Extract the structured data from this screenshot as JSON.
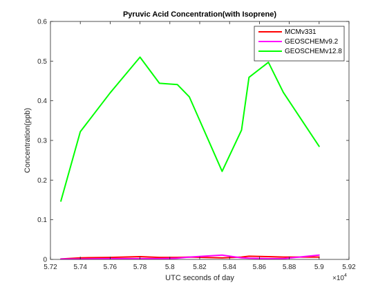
{
  "chart_data": {
    "type": "line",
    "title": "Pyruvic Acid Concentration(with Isoprene)",
    "xlabel": "UTC seconds of day",
    "ylabel": "Concentration(ppb)",
    "x_exponent_label": "×10",
    "x_exponent": "4",
    "xlim": [
      5.72,
      5.92
    ],
    "ylim": [
      0,
      0.6
    ],
    "xticks": [
      5.72,
      5.74,
      5.76,
      5.78,
      5.8,
      5.82,
      5.84,
      5.86,
      5.88,
      5.9,
      5.92
    ],
    "xtick_labels": [
      "5.72",
      "5.74",
      "5.76",
      "5.78",
      "5.8",
      "5.82",
      "5.84",
      "5.86",
      "5.88",
      "5.9",
      "5.92"
    ],
    "yticks": [
      0,
      0.1,
      0.2,
      0.3,
      0.4,
      0.5,
      0.6
    ],
    "ytick_labels": [
      "0",
      "0.1",
      "0.2",
      "0.3",
      "0.4",
      "0.5",
      "0.6"
    ],
    "grid": false,
    "legend_position": "top-right",
    "series": [
      {
        "name": "MCMv331",
        "color": "#ff0000",
        "x": [
          5.727,
          5.74,
          5.76,
          5.78,
          5.793,
          5.805,
          5.813,
          5.835,
          5.848,
          5.853,
          5.866,
          5.876,
          5.9
        ],
        "y": [
          0.001,
          0.004,
          0.005,
          0.007,
          0.005,
          0.005,
          0.006,
          0.004,
          0.006,
          0.008,
          0.007,
          0.006,
          0.006
        ]
      },
      {
        "name": "GEOSCHEMv9.2",
        "color": "#ff00ff",
        "x": [
          5.727,
          5.74,
          5.76,
          5.78,
          5.793,
          5.805,
          5.813,
          5.835,
          5.848,
          5.853,
          5.866,
          5.876,
          5.9
        ],
        "y": [
          0.001,
          0.001,
          0.002,
          0.002,
          0.002,
          0.003,
          0.006,
          0.011,
          0.004,
          0.003,
          0.002,
          0.002,
          0.011
        ]
      },
      {
        "name": "GEOSCHEMv12.8",
        "color": "#00ff00",
        "x": [
          5.727,
          5.74,
          5.76,
          5.78,
          5.793,
          5.805,
          5.813,
          5.835,
          5.848,
          5.853,
          5.866,
          5.876,
          5.9
        ],
        "y": [
          0.147,
          0.322,
          0.42,
          0.51,
          0.444,
          0.441,
          0.41,
          0.222,
          0.326,
          0.459,
          0.497,
          0.421,
          0.285
        ]
      }
    ]
  }
}
